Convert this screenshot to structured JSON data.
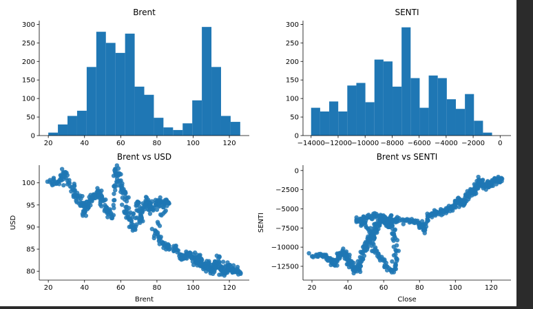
{
  "colors": {
    "bar": "#1f77b4",
    "point": "#1f77b4",
    "axis": "#000000",
    "background": "#ffffff"
  },
  "chart_data": [
    {
      "type": "bar",
      "title": "Brent",
      "xlabel": "",
      "ylabel": "",
      "xlim": [
        15,
        131
      ],
      "ylim": [
        0,
        310
      ],
      "xticks": [
        20,
        40,
        60,
        80,
        100,
        120
      ],
      "yticks": [
        0,
        50,
        100,
        150,
        200,
        250,
        300
      ],
      "bin_edges": [
        20,
        25.3,
        30.6,
        35.9,
        41.2,
        46.5,
        51.8,
        57.1,
        62.4,
        67.7,
        73,
        78.3,
        83.6,
        88.9,
        94.2,
        99.5,
        104.8,
        110.1,
        115.4,
        120.7,
        126
      ],
      "values": [
        8,
        30,
        53,
        67,
        185,
        280,
        250,
        223,
        275,
        132,
        110,
        48,
        22,
        15,
        33,
        95,
        293,
        185,
        53,
        37
      ]
    },
    {
      "type": "bar",
      "title": "SENTI",
      "xlabel": "",
      "ylabel": "",
      "xlim": [
        -14600,
        800
      ],
      "ylim": [
        0,
        310
      ],
      "xticks": [
        -14000,
        -12000,
        -10000,
        -8000,
        -6000,
        -4000,
        -2000,
        0
      ],
      "xticklabels": [
        "−14000",
        "−12000",
        "−10000",
        "−8000",
        "−6000",
        "−4000",
        "−2000",
        "0"
      ],
      "yticks": [
        0,
        50,
        100,
        150,
        200,
        250,
        300
      ],
      "bin_edges": [
        -14000,
        -13330,
        -12660,
        -11990,
        -11320,
        -10650,
        -9980,
        -9310,
        -8640,
        -7970,
        -7300,
        -6630,
        -5960,
        -5290,
        -4620,
        -3950,
        -3280,
        -2610,
        -1940,
        -1270,
        -600
      ],
      "values": [
        75,
        65,
        92,
        65,
        135,
        142,
        90,
        205,
        200,
        132,
        292,
        155,
        75,
        162,
        155,
        98,
        72,
        112,
        40,
        8
      ]
    },
    {
      "type": "scatter",
      "title": "Brent  vs USD",
      "xlabel": "Brent",
      "ylabel": "USD",
      "xlim": [
        15,
        131
      ],
      "ylim": [
        78,
        104
      ],
      "xticks": [
        20,
        40,
        60,
        80,
        100,
        120
      ],
      "yticks": [
        80,
        85,
        90,
        95,
        100
      ],
      "path": [
        [
          20,
          100.3
        ],
        [
          26,
          100
        ],
        [
          28,
          102.5
        ],
        [
          33,
          99
        ],
        [
          35,
          97
        ],
        [
          38,
          96
        ],
        [
          40,
          93
        ],
        [
          42,
          95.5
        ],
        [
          45,
          97
        ],
        [
          48,
          98
        ],
        [
          50,
          96
        ],
        [
          52,
          94
        ],
        [
          55,
          92
        ],
        [
          57,
          101
        ],
        [
          58,
          103
        ],
        [
          60,
          99
        ],
        [
          62,
          98
        ],
        [
          63,
          94
        ],
        [
          65,
          92
        ],
        [
          67,
          89
        ],
        [
          69,
          96
        ],
        [
          71,
          91
        ],
        [
          73,
          95
        ],
        [
          75,
          96
        ],
        [
          77,
          94
        ],
        [
          80,
          95.8
        ],
        [
          84,
          95.5
        ],
        [
          87,
          95.6
        ],
        [
          78,
          88.5
        ],
        [
          82,
          87
        ],
        [
          86,
          85.5
        ],
        [
          90,
          85
        ],
        [
          94,
          83
        ],
        [
          97,
          84
        ],
        [
          100,
          83.5
        ],
        [
          102,
          82
        ],
        [
          104,
          83
        ],
        [
          106,
          80.5
        ],
        [
          108,
          82
        ],
        [
          110,
          80
        ],
        [
          112,
          81.5
        ],
        [
          114,
          82.5
        ],
        [
          116,
          79.5
        ],
        [
          118,
          80.5
        ],
        [
          120,
          81
        ],
        [
          123,
          80
        ],
        [
          126,
          80
        ]
      ],
      "spread": [
        2.5,
        1.5
      ]
    },
    {
      "type": "scatter",
      "title": "Brent vs SENTI",
      "xlabel": "Close",
      "ylabel": "SENTI",
      "xlim": [
        15,
        131
      ],
      "ylim": [
        -14300,
        700
      ],
      "xticks": [
        20,
        40,
        60,
        80,
        100,
        120
      ],
      "yticks": [
        0,
        -2500,
        -5000,
        -7500,
        -10000,
        -12500
      ],
      "yticklabels": [
        "0",
        "−2500",
        "−5000",
        "−7500",
        "−10000",
        "−12500"
      ],
      "path": [
        [
          20,
          -11000
        ],
        [
          26,
          -11200
        ],
        [
          30,
          -11500
        ],
        [
          33,
          -12200
        ],
        [
          35,
          -11000
        ],
        [
          38,
          -10600
        ],
        [
          40,
          -11600
        ],
        [
          42,
          -12500
        ],
        [
          44,
          -13000
        ],
        [
          46,
          -12800
        ],
        [
          48,
          -11000
        ],
        [
          50,
          -9800
        ],
        [
          52,
          -9000
        ],
        [
          54,
          -8400
        ],
        [
          56,
          -7500
        ],
        [
          58,
          -6500
        ],
        [
          60,
          -6400
        ],
        [
          62,
          -7200
        ],
        [
          64,
          -6800
        ],
        [
          66,
          -8500
        ],
        [
          67,
          -11500
        ],
        [
          65,
          -13300
        ],
        [
          60,
          -12000
        ],
        [
          55,
          -10500
        ],
        [
          52,
          -7500
        ],
        [
          45,
          -6600
        ],
        [
          50,
          -6100
        ],
        [
          55,
          -6000
        ],
        [
          60,
          -6100
        ],
        [
          65,
          -6300
        ],
        [
          70,
          -6500
        ],
        [
          75,
          -6600
        ],
        [
          80,
          -6800
        ],
        [
          82,
          -7800
        ],
        [
          85,
          -6000
        ],
        [
          88,
          -5600
        ],
        [
          92,
          -5400
        ],
        [
          95,
          -5200
        ],
        [
          98,
          -4800
        ],
        [
          100,
          -4500
        ],
        [
          102,
          -3800
        ],
        [
          104,
          -4500
        ],
        [
          106,
          -3700
        ],
        [
          108,
          -2700
        ],
        [
          110,
          -3000
        ],
        [
          112,
          -2000
        ],
        [
          114,
          -1200
        ],
        [
          116,
          -2300
        ],
        [
          118,
          -1600
        ],
        [
          120,
          -1800
        ],
        [
          122,
          -1200
        ],
        [
          124,
          -1400
        ],
        [
          126,
          -1100
        ]
      ],
      "spread": [
        2.5,
        600
      ]
    }
  ]
}
